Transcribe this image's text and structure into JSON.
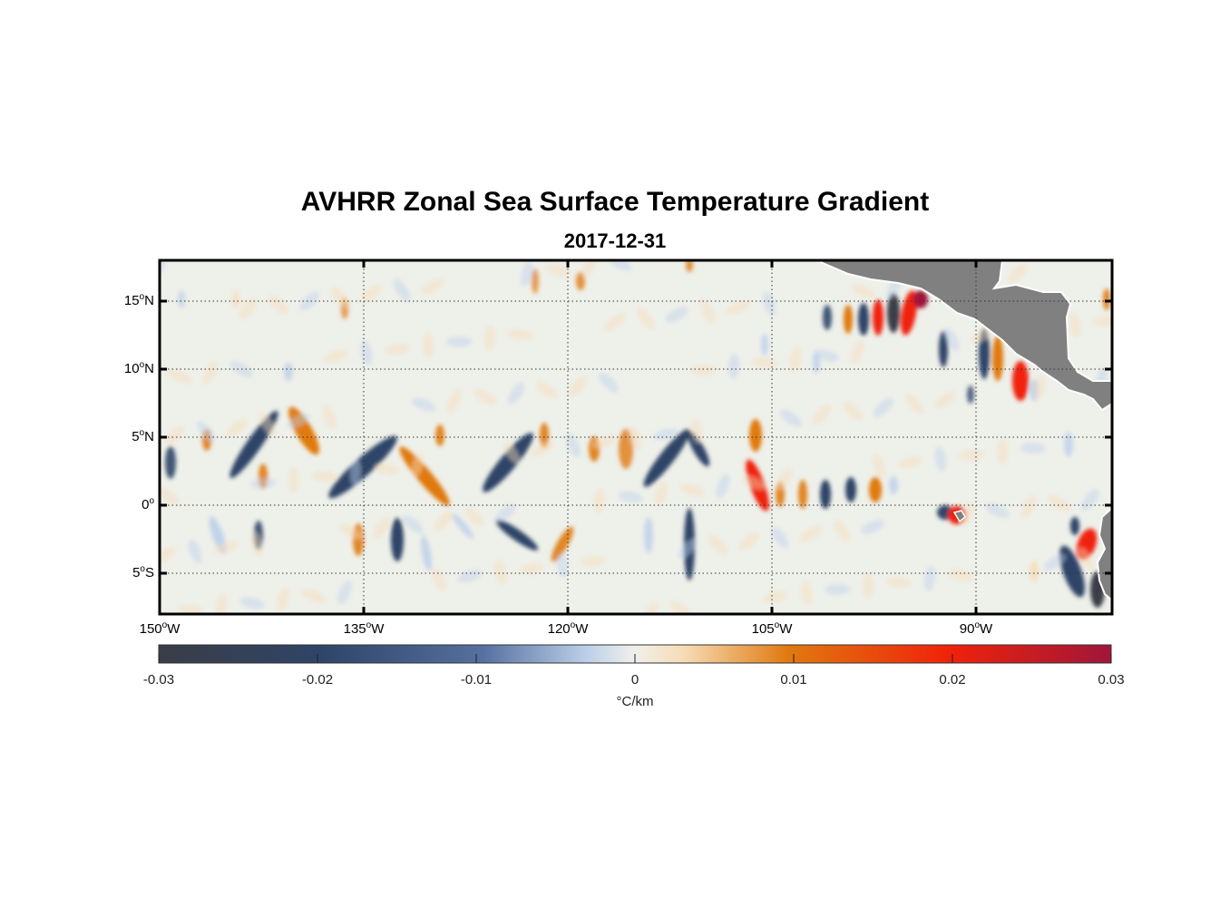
{
  "title": "AVHRR Zonal Sea Surface Temperature Gradient",
  "subtitle": "2017-12-31",
  "lat_ticks": [
    {
      "deg": "15",
      "hemi": "N",
      "value": 15
    },
    {
      "deg": "10",
      "hemi": "N",
      "value": 10
    },
    {
      "deg": "5",
      "hemi": "N",
      "value": 5
    },
    {
      "deg": "0",
      "hemi": "",
      "value": 0
    },
    {
      "deg": "5",
      "hemi": "S",
      "value": -5
    }
  ],
  "lon_ticks": [
    {
      "deg": "150",
      "hemi": "W",
      "value": -150
    },
    {
      "deg": "135",
      "hemi": "W",
      "value": -135
    },
    {
      "deg": "120",
      "hemi": "W",
      "value": -120
    },
    {
      "deg": "105",
      "hemi": "W",
      "value": -105
    },
    {
      "deg": "90",
      "hemi": "W",
      "value": -90
    }
  ],
  "extent": {
    "lon": [
      -150,
      -80
    ],
    "lat": [
      -8,
      18
    ]
  },
  "colorbar": {
    "ticks": [
      "-0.03",
      "-0.02",
      "-0.01",
      "0",
      "0.01",
      "0.02",
      "0.03"
    ],
    "range": [
      -0.03,
      0.03
    ],
    "unit": "°C/km",
    "colors": {
      "neg_max": "#3a3d47",
      "neg_mid": "#2e4568",
      "neg_low": "#bcd0ea",
      "zero": "#f0f0ea",
      "pos_low": "#f7dcb7",
      "pos_mid": "#e07a10",
      "pos_high": "#f0220a",
      "pos_max": "#a0163a"
    }
  },
  "land_color": "#808080"
}
